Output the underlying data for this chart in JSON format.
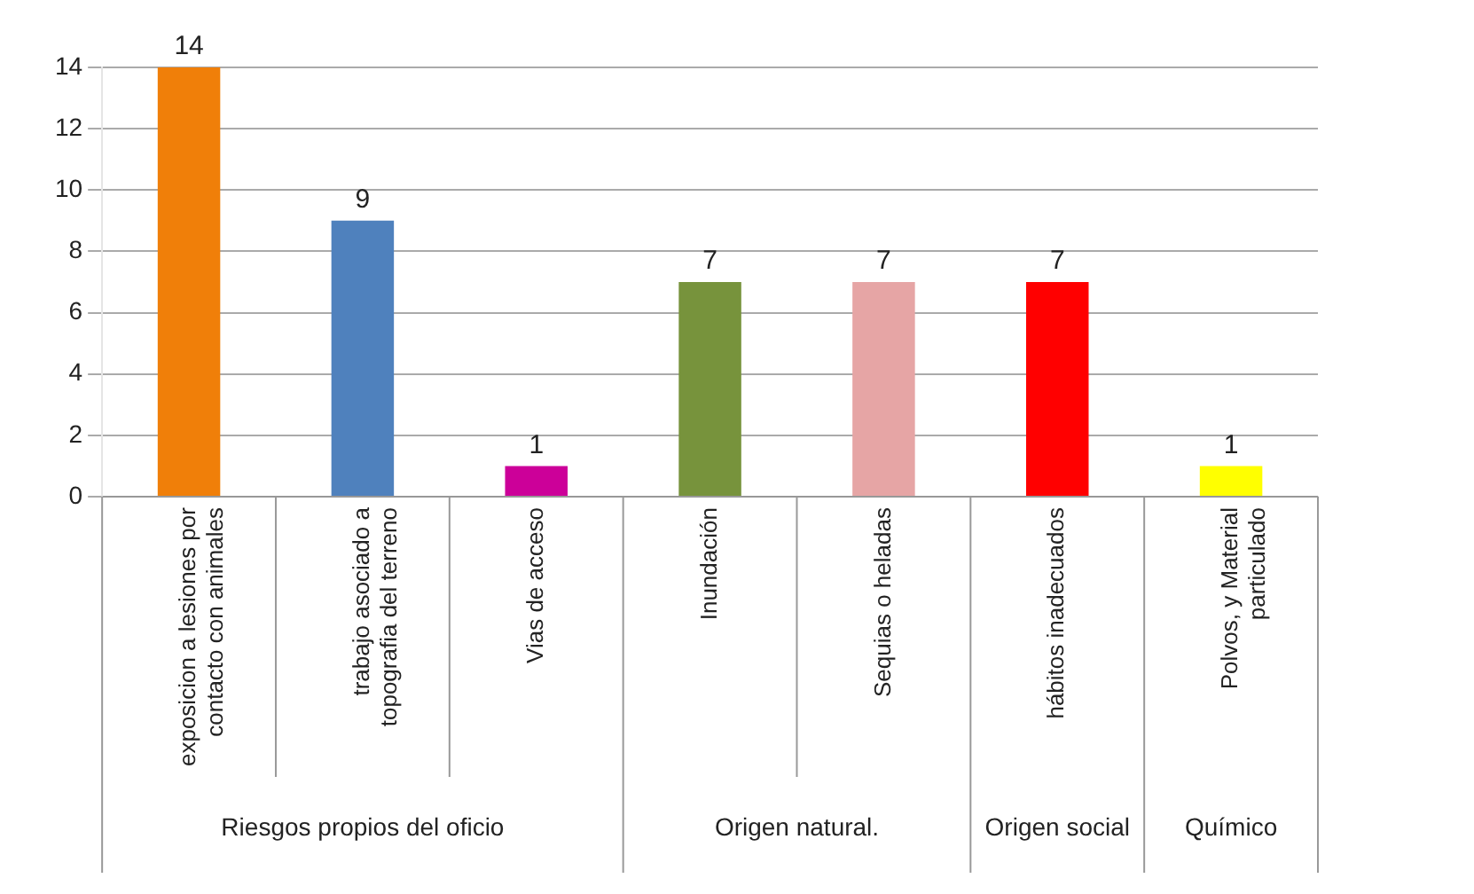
{
  "chart_data": {
    "type": "bar",
    "categories": [
      "exposicion a lesiones por contacto con animales",
      "trabajo asociado a topografia del terreno",
      "Vias de acceso",
      "Inundación",
      "Sequias o heladas",
      "hábitos inadecuados",
      "Polvos, y Material particulado"
    ],
    "values": [
      14,
      9,
      1,
      7,
      7,
      7,
      1
    ],
    "colors": [
      "#f07f09",
      "#4f81bd",
      "#cc0099",
      "#77933c",
      "#e6a5a5",
      "#ff0000",
      "#ffff00"
    ],
    "ylim": [
      0,
      14
    ],
    "yticks": [
      0,
      2,
      4,
      6,
      8,
      10,
      12,
      14
    ],
    "grid": "y",
    "data_labels": true,
    "legend": false,
    "annotations": [
      "Riesgos propios del oficio",
      "Origen natural.",
      "Origen social",
      "Químico"
    ]
  }
}
